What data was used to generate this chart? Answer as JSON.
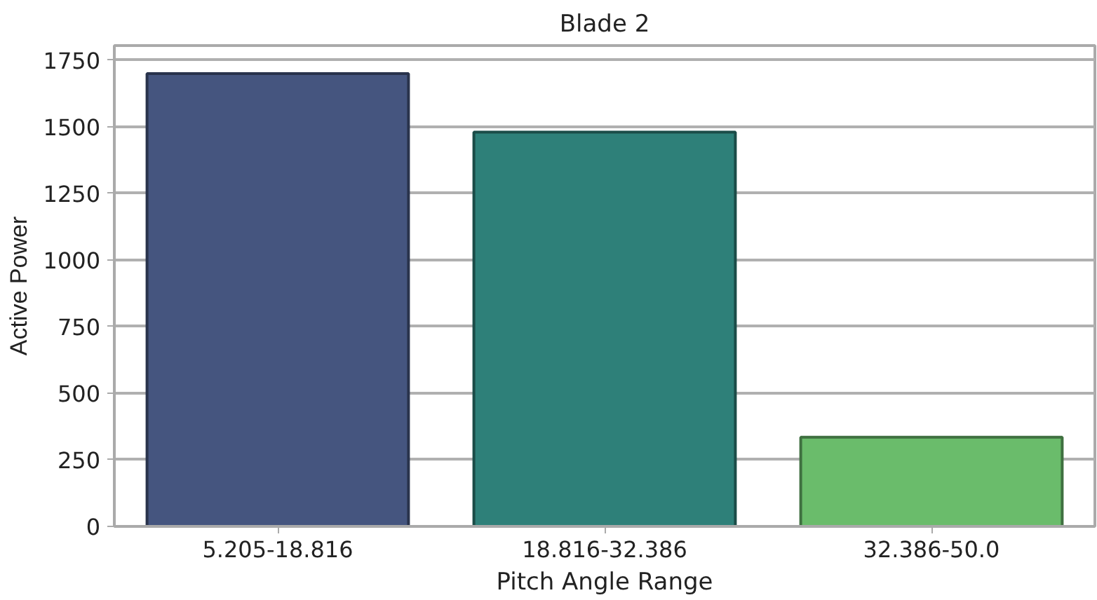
{
  "chart_data": {
    "type": "bar",
    "title": "Blade 2",
    "xlabel": "Pitch Angle Range",
    "ylabel": "Active Power",
    "categories": [
      "5.205-18.816",
      "18.816-32.386",
      "32.386-50.0"
    ],
    "values": [
      1700,
      1480,
      335
    ],
    "colors": [
      "#45557f",
      "#2e8079",
      "#6abc6b"
    ],
    "ylim": [
      0,
      1805
    ],
    "yticks": [
      0,
      250,
      500,
      750,
      1000,
      1250,
      1500,
      1750
    ],
    "grid": "y"
  }
}
